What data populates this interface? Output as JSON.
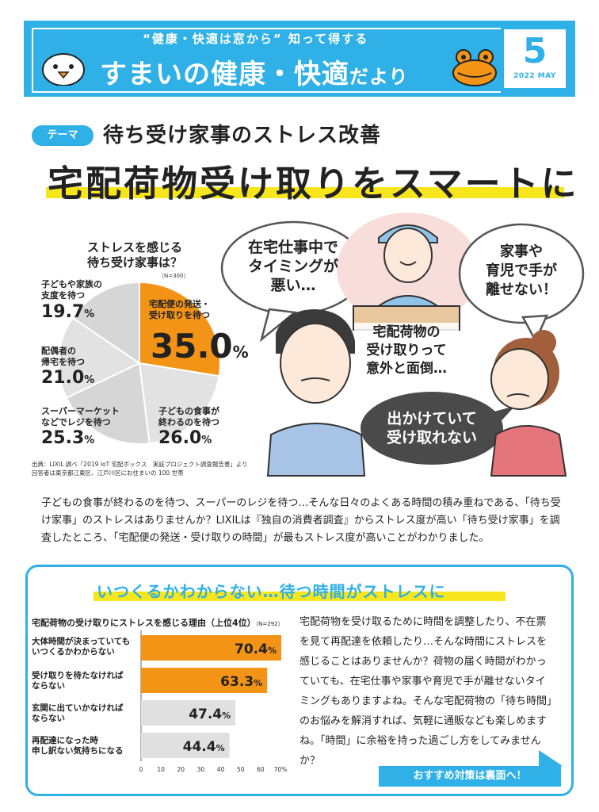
{
  "header": {
    "tagline": "“健康・快適は窓から” 知って得する",
    "brand_main": "すまいの健康・快適",
    "brand_tail": "だより",
    "month": "5",
    "date": "2022 MAY",
    "accent_color": "#2fb0e6"
  },
  "title": {
    "badge": "テーマ",
    "subtitle": "待ち受け家事のストレス改善",
    "main": "宅配荷物受け取りをスマートに"
  },
  "pie": {
    "question_line1": "ストレスを感じる",
    "question_line2": "待ち受け家事は？",
    "n": "（N=300）",
    "source_line1": "出典：LIXIL 調べ「2019 IoT 宅配ボックス　実証プロジェクト調査報告書」より",
    "source_line2": "回答者は東京都江東区、江戸川区にお住まいの 100 世帯"
  },
  "bubbles": {
    "b1_line1": "在宅仕事中で",
    "b1_line2": "タイミングが",
    "b1_line3": "悪い…",
    "b2_line1": "宅配荷物の",
    "b2_line2": "受け取りって",
    "b2_line3": "意外と面倒…",
    "b3_line1": "家事や",
    "b3_line2": "育児で手が",
    "b3_line3": "離せない！",
    "b4_line1": "出かけていて",
    "b4_line2": "受け取れない"
  },
  "intro": "子どもの食事が終わるのを待つ、スーパーのレジを待つ…そんな日々のよくある時間の積み重ねである、「待ち受け家事」のストレスはありませんか？LIXILは『独自の消費者調査』からストレス度が高い「待ち受け家事」を調査したところ、「宅配便の発送・受け取りの時間」が最もストレス度が高いことがわかりました。",
  "panel": {
    "heading": "いつくるかわからない…待つ時間がストレスに",
    "bar_title": "宅配荷物の受け取りにストレスを感じる理由（上位4位）",
    "bar_n": "（N=292）",
    "body": "宅配荷物を受け取るために時間を調整したり、不在票を見て再配達を依頼したり…そんな時間にストレスを感じることはありませんか？荷物の届く時間がわかっていても、在宅仕事や家事や育児で手が離せないタイミングもありますよね。そんな宅配荷物の「待ち時間」のお悩みを解消すれば、気軽に通販なども楽しめますね。「時間」に余裕を持った過ごし方をしてみませんか？",
    "cta": "おすすめ対策は裏面へ！"
  },
  "chart_data": [
    {
      "type": "pie",
      "title": "ストレスを感じる待ち受け家事は？",
      "slices": [
        {
          "label_line1": "宅配便の発送・",
          "label_line2": "受け取りを待つ",
          "value": 35.0,
          "color": "#f39417"
        },
        {
          "label_line1": "子どもの食事が",
          "label_line2": "終わるのを待つ",
          "value": 26.0,
          "color": "#e2e2e2"
        },
        {
          "label_line1": "スーパーマーケット",
          "label_line2": "などでレジを待つ",
          "value": 25.3,
          "color": "#d6d6d6"
        },
        {
          "label_line1": "配偶者の",
          "label_line2": "帰宅を待つ",
          "value": 21.0,
          "color": "#e2e2e2"
        },
        {
          "label_line1": "子どもや家族の",
          "label_line2": "支度を待つ",
          "value": 19.7,
          "color": "#d6d6d6"
        }
      ]
    },
    {
      "type": "bar",
      "orientation": "horizontal",
      "title": "宅配荷物の受け取りにストレスを感じる理由（上位4位）",
      "categories": [
        [
          "大体時間が決まっていても",
          "いつくるかわからない"
        ],
        [
          "受け取りを待たなければ",
          "ならない"
        ],
        [
          "玄関に出ていかなければ",
          "ならない"
        ],
        [
          "再配達になった時",
          "申し訳ない気持ちになる"
        ]
      ],
      "values": [
        70.4,
        63.3,
        47.4,
        44.4
      ],
      "colors": [
        "#f39417",
        "#f39417",
        "#e0e0e0",
        "#e0e0e0"
      ],
      "xlim": [
        0,
        70
      ],
      "xticks": [
        "0",
        "10",
        "20",
        "30",
        "40",
        "50",
        "60",
        "70%"
      ]
    }
  ]
}
